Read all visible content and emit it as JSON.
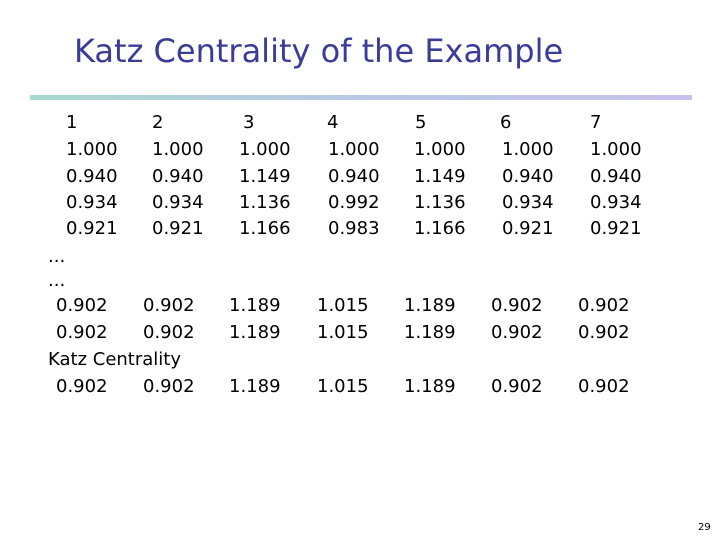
{
  "title": "Katz Centrality of the Example",
  "nodes": [
    "1",
    "2",
    "3",
    "4",
    "5",
    "6",
    "7"
  ],
  "iterations": [
    [
      "1.000",
      "1.000",
      "1.000",
      "1.000",
      "1.000",
      "1.000",
      "1.000"
    ],
    [
      "0.940",
      "0.940",
      "1.149",
      "0.940",
      "1.149",
      "0.940",
      "0.940"
    ],
    [
      "0.934",
      "0.934",
      "1.136",
      "0.992",
      "1.136",
      "0.934",
      "0.934"
    ],
    [
      "0.921",
      "0.921",
      "1.166",
      "0.983",
      "1.166",
      "0.921",
      "0.921"
    ]
  ],
  "ellipsis": [
    "...",
    "..."
  ],
  "late_iterations": [
    [
      "0.902",
      "0.902",
      "1.189",
      "1.015",
      "1.189",
      "0.902",
      "0.902"
    ],
    [
      "0.902",
      "0.902",
      "1.189",
      "1.015",
      "1.189",
      "0.902",
      "0.902"
    ]
  ],
  "katz_label": "Katz Centrality",
  "katz_values": [
    "0.902",
    "0.902",
    "1.189",
    "1.015",
    "1.189",
    "0.902",
    "0.902"
  ],
  "page_number": "29"
}
